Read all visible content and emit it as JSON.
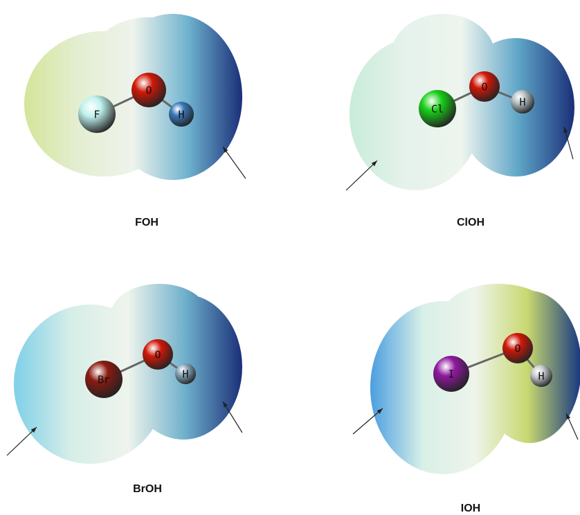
{
  "panels": [
    {
      "label": "FOH",
      "atoms": [
        "F",
        "O",
        "H"
      ]
    },
    {
      "label": "ClOH",
      "atoms": [
        "Cl",
        "O",
        "H"
      ]
    },
    {
      "label": "BrOH",
      "atoms": [
        "Br",
        "O",
        "H"
      ]
    },
    {
      "label": "IOH",
      "atoms": [
        "I",
        "O",
        "H"
      ]
    }
  ]
}
